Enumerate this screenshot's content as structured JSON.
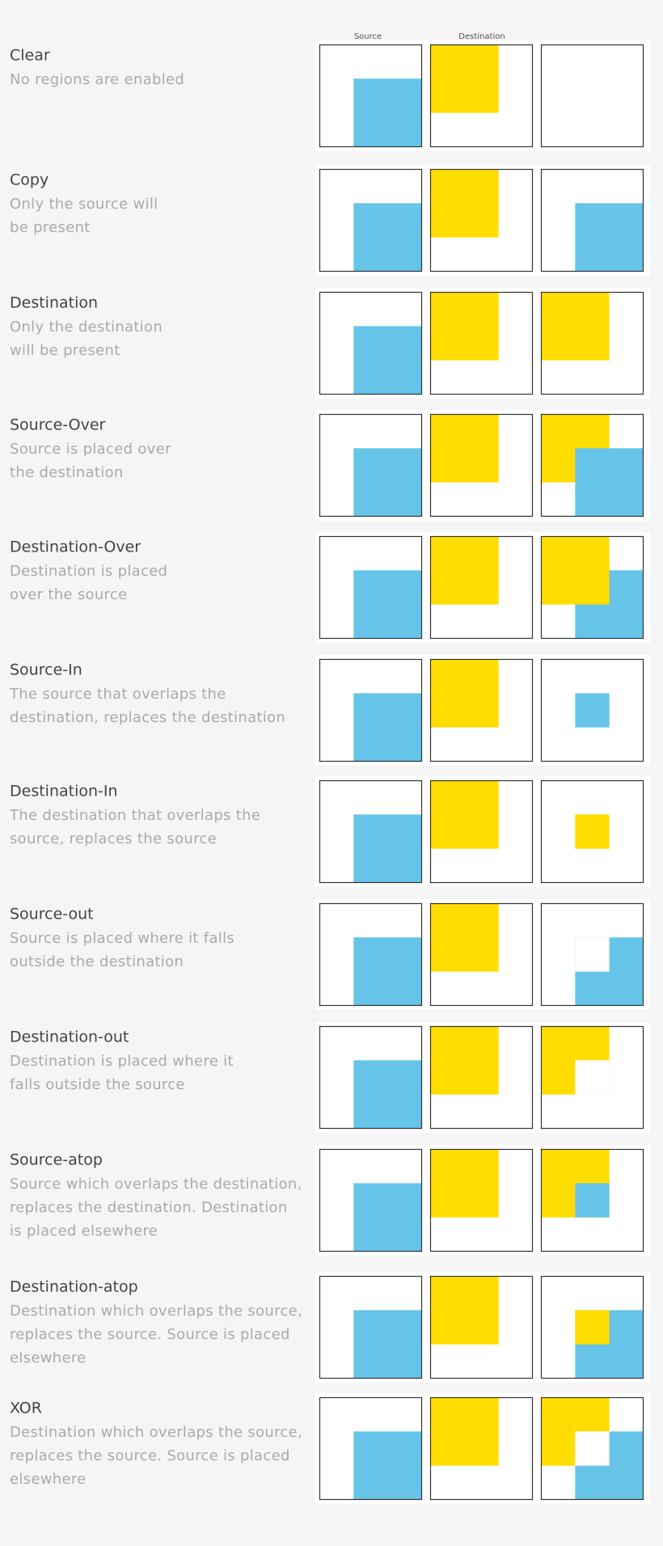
{
  "header": {
    "source": "Source",
    "destination": "Destination"
  },
  "rows": [
    {
      "title": "Clear",
      "description": [
        "No regions are enabled"
      ]
    },
    {
      "title": "Copy",
      "description": [
        "Only the source will",
        "be present"
      ]
    },
    {
      "title": "Destination",
      "description": [
        "Only the destination",
        "will be present"
      ]
    },
    {
      "title": "Source-Over",
      "description": [
        "Source is placed over",
        "the destination"
      ]
    },
    {
      "title": "Destination-Over",
      "description": [
        "Destination is placed",
        "over the source"
      ]
    },
    {
      "title": "Source-In",
      "description": [
        "The source that overlaps the",
        "destination, replaces the destination"
      ]
    },
    {
      "title": "Destination-In",
      "description": [
        "The destination that overlaps the",
        "source, replaces the source"
      ]
    },
    {
      "title": "Source-out",
      "description": [
        "Source is placed where it falls",
        "outside the destination"
      ]
    },
    {
      "title": "Destination-out",
      "description": [
        "Destination is placed where it",
        "falls outside the source"
      ]
    },
    {
      "title": "Source-atop",
      "description": [
        "Source which overlaps the destination,",
        "replaces the destination. Destination",
        "is placed elsewhere"
      ]
    },
    {
      "title": "Destination-atop",
      "description": [
        "Destination which overlaps the source,",
        "replaces the source. Source is placed",
        "elsewhere"
      ]
    },
    {
      "title": "XOR",
      "description": [
        "Destination which overlaps the source,",
        "replaces the source. Source is placed",
        "elsewhere"
      ]
    }
  ]
}
